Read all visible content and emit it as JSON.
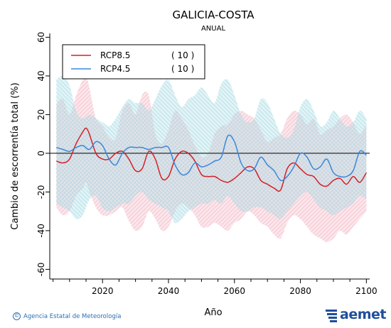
{
  "chart_data": {
    "type": "line",
    "title": "GALICIA-COSTA",
    "subtitle": "ANUAL",
    "xlabel": "Año",
    "ylabel": "Cambio de escorrentía total (%)",
    "xlim": [
      2004,
      2101
    ],
    "ylim": [
      -65,
      62
    ],
    "x_ticks": [
      2020,
      2040,
      2060,
      2080,
      2100
    ],
    "y_ticks": [
      60,
      40,
      20,
      0,
      -20,
      -40,
      -60
    ],
    "legend_position": "top-left",
    "series": [
      {
        "name": "RCP8.5",
        "count_label": "( 10 )",
        "color": "#d42027",
        "band_color": "#f2b8c4",
        "x": [
          2006,
          2008,
          2010,
          2012,
          2014,
          2015,
          2016,
          2018,
          2020,
          2022,
          2024,
          2026,
          2028,
          2030,
          2032,
          2034,
          2036,
          2038,
          2040,
          2042,
          2044,
          2046,
          2048,
          2050,
          2052,
          2054,
          2056,
          2058,
          2060,
          2062,
          2064,
          2066,
          2068,
          2070,
          2072,
          2074,
          2076,
          2078,
          2080,
          2082,
          2084,
          2086,
          2088,
          2090,
          2092,
          2094,
          2096,
          2098,
          2100
        ],
        "mean": [
          -4,
          -5,
          -3,
          5,
          11,
          13,
          10,
          0,
          -3,
          -3,
          0,
          1,
          -3,
          -9,
          -8,
          1,
          -3,
          -13,
          -12,
          -3,
          1,
          0,
          -4,
          -11,
          -12,
          -12,
          -14,
          -15,
          -13,
          -10,
          -7,
          -8,
          -14,
          -16,
          -18,
          -19,
          -8,
          -5,
          -8,
          -11,
          -12,
          -16,
          -17,
          -14,
          -13,
          -16,
          -12,
          -15,
          -10
        ],
        "upper": [
          25,
          28,
          20,
          30,
          38,
          40,
          34,
          18,
          14,
          8,
          8,
          22,
          26,
          20,
          30,
          30,
          10,
          5,
          12,
          22,
          18,
          12,
          4,
          -2,
          0,
          10,
          14,
          15,
          20,
          22,
          20,
          18,
          12,
          6,
          8,
          10,
          18,
          22,
          20,
          15,
          18,
          10,
          12,
          14,
          18,
          20,
          16,
          10,
          15
        ],
        "lower": [
          -28,
          -32,
          -30,
          -22,
          -18,
          -15,
          -20,
          -28,
          -32,
          -32,
          -30,
          -28,
          -35,
          -40,
          -38,
          -30,
          -34,
          -40,
          -38,
          -30,
          -26,
          -28,
          -32,
          -38,
          -38,
          -36,
          -38,
          -40,
          -36,
          -34,
          -30,
          -32,
          -36,
          -38,
          -42,
          -44,
          -36,
          -32,
          -34,
          -38,
          -42,
          -44,
          -46,
          -44,
          -40,
          -42,
          -38,
          -34,
          -30
        ]
      },
      {
        "name": "RCP4.5",
        "count_label": "( 10 )",
        "color": "#3b87d9",
        "band_color": "#a9dbe4",
        "x": [
          2006,
          2008,
          2010,
          2012,
          2014,
          2016,
          2018,
          2020,
          2022,
          2024,
          2026,
          2028,
          2030,
          2032,
          2034,
          2036,
          2038,
          2040,
          2042,
          2044,
          2046,
          2048,
          2050,
          2052,
          2054,
          2056,
          2058,
          2060,
          2062,
          2064,
          2066,
          2068,
          2070,
          2072,
          2074,
          2076,
          2078,
          2080,
          2082,
          2084,
          2086,
          2088,
          2090,
          2092,
          2094,
          2096,
          2098,
          2100
        ],
        "mean": [
          3,
          2,
          1,
          3,
          4,
          2,
          6,
          4,
          -3,
          -6,
          0,
          3,
          3,
          3,
          2,
          3,
          3,
          3,
          -6,
          -11,
          -10,
          -5,
          -7,
          -6,
          -4,
          -2,
          9,
          6,
          -5,
          -9,
          -8,
          -2,
          -6,
          -9,
          -14,
          -12,
          -7,
          0,
          -2,
          -8,
          -7,
          -3,
          -10,
          -12,
          -12,
          -9,
          1,
          -1
        ],
        "upper": [
          38,
          40,
          35,
          22,
          18,
          20,
          18,
          16,
          14,
          18,
          24,
          28,
          26,
          26,
          22,
          28,
          35,
          38,
          30,
          24,
          28,
          30,
          34,
          30,
          26,
          36,
          38,
          30,
          20,
          16,
          18,
          28,
          26,
          18,
          10,
          8,
          12,
          24,
          28,
          22,
          14,
          16,
          22,
          18,
          14,
          16,
          22,
          18
        ],
        "lower": [
          -26,
          -28,
          -30,
          -34,
          -32,
          -24,
          -22,
          -28,
          -30,
          -28,
          -26,
          -26,
          -22,
          -20,
          -24,
          -26,
          -28,
          -30,
          -36,
          -34,
          -30,
          -28,
          -26,
          -26,
          -24,
          -26,
          -22,
          -26,
          -30,
          -30,
          -28,
          -28,
          -30,
          -32,
          -34,
          -30,
          -26,
          -22,
          -20,
          -24,
          -28,
          -30,
          -32,
          -30,
          -28,
          -26,
          -22,
          -24
        ]
      }
    ]
  },
  "footer": {
    "credit": "Agencia Estatal de Meteorología",
    "logo_text": "aemet"
  }
}
